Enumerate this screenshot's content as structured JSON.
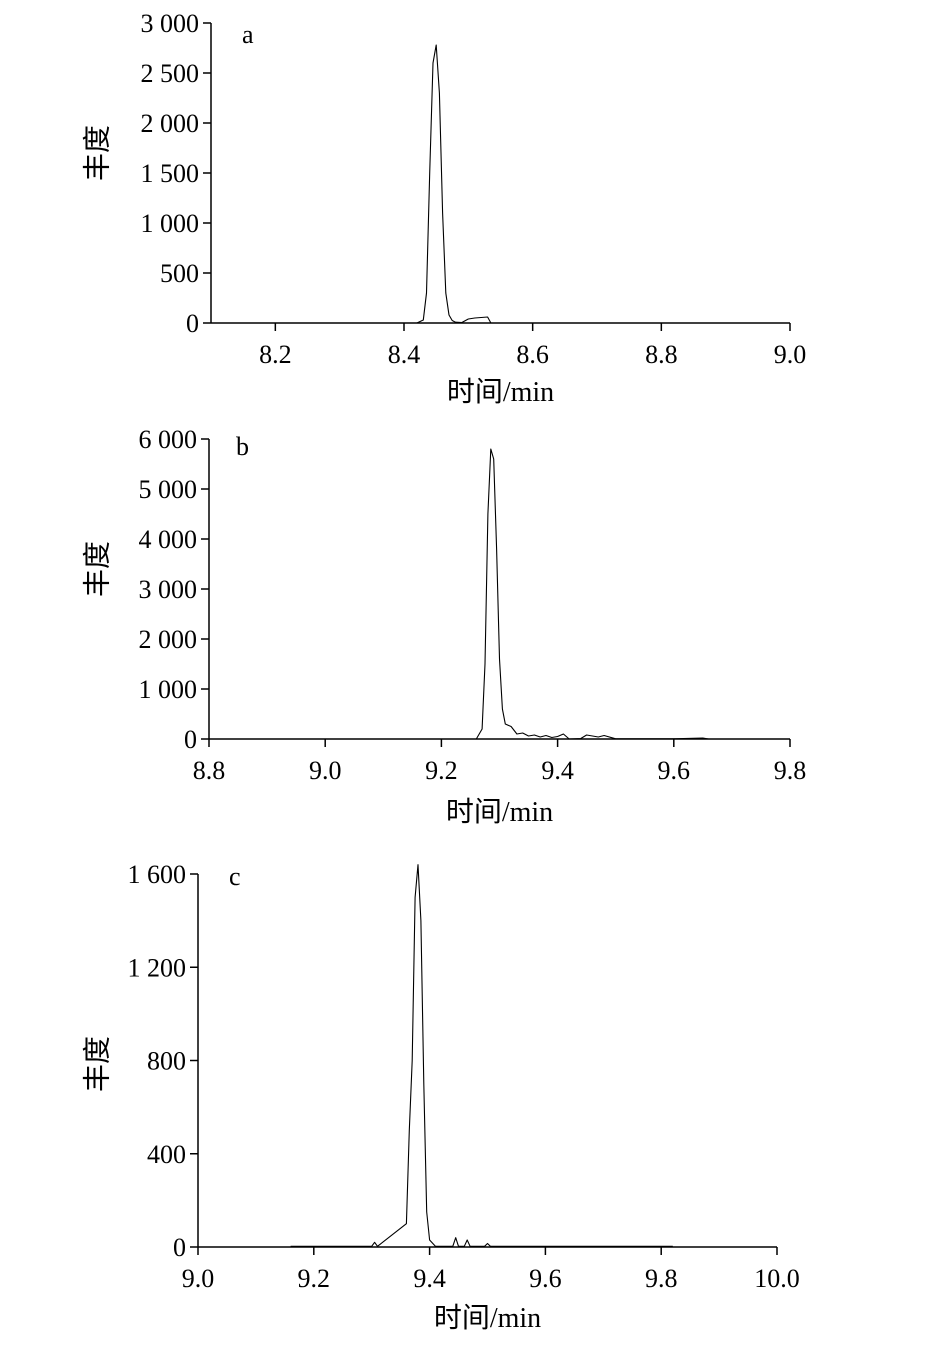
{
  "chart_data": [
    {
      "type": "line",
      "panel_label": "a",
      "xlabel": "时间/min",
      "ylabel": "丰度",
      "xlim": [
        8.1,
        9.0
      ],
      "ylim": [
        0,
        3000
      ],
      "xticks": [
        8.2,
        8.4,
        8.6,
        8.8,
        9.0
      ],
      "xtick_labels": [
        "8.2",
        "8.4",
        "8.6",
        "8.8",
        "9.0"
      ],
      "yticks": [
        0,
        500,
        1000,
        1500,
        2000,
        2500,
        3000
      ],
      "ytick_labels": [
        "0",
        "500",
        "1 000",
        "1 500",
        "2 000",
        "2 500",
        "3 000"
      ],
      "series": [
        {
          "x": [
            8.1,
            8.42,
            8.43,
            8.435,
            8.44,
            8.445,
            8.45,
            8.455,
            8.46,
            8.465,
            8.47,
            8.475,
            8.48,
            8.49,
            8.5,
            8.51,
            8.52,
            8.53,
            8.535,
            9.0
          ],
          "y": [
            0,
            0,
            30,
            300,
            1500,
            2600,
            2780,
            2300,
            1100,
            300,
            80,
            25,
            8,
            5,
            40,
            50,
            55,
            60,
            0,
            0
          ]
        }
      ]
    },
    {
      "type": "line",
      "panel_label": "b",
      "xlabel": "时间/min",
      "ylabel": "丰度",
      "xlim": [
        8.8,
        9.8
      ],
      "ylim": [
        0,
        6000
      ],
      "xticks": [
        8.8,
        9.0,
        9.2,
        9.4,
        9.6,
        9.8
      ],
      "xtick_labels": [
        "8.8",
        "9.0",
        "9.2",
        "9.4",
        "9.6",
        "9.8"
      ],
      "yticks": [
        0,
        1000,
        2000,
        3000,
        4000,
        5000,
        6000
      ],
      "ytick_labels": [
        "0",
        "1 000",
        "2 000",
        "3 000",
        "4 000",
        "5 000",
        "6 000"
      ],
      "series": [
        {
          "x": [
            8.8,
            9.26,
            9.27,
            9.275,
            9.28,
            9.285,
            9.29,
            9.295,
            9.3,
            9.305,
            9.31,
            9.32,
            9.33,
            9.34,
            9.35,
            9.36,
            9.37,
            9.38,
            9.39,
            9.4,
            9.41,
            9.42,
            9.44,
            9.45,
            9.46,
            9.47,
            9.48,
            9.5,
            9.55,
            9.6,
            9.65,
            9.66,
            9.8
          ],
          "y": [
            0,
            0,
            200,
            1500,
            4500,
            5800,
            5600,
            3800,
            1600,
            600,
            300,
            250,
            100,
            120,
            60,
            80,
            40,
            70,
            30,
            50,
            100,
            0,
            10,
            80,
            60,
            40,
            70,
            5,
            5,
            5,
            20,
            0,
            0
          ]
        }
      ]
    },
    {
      "type": "line",
      "panel_label": "c",
      "xlabel": "时间/min",
      "ylabel": "丰度",
      "xlim": [
        9.0,
        10.0
      ],
      "ylim": [
        0,
        1600
      ],
      "xticks": [
        9.0,
        9.2,
        9.4,
        9.6,
        9.8,
        10.0
      ],
      "xtick_labels": [
        "9.0",
        "9.2",
        "9.4",
        "9.6",
        "9.8",
        "10.0"
      ],
      "yticks": [
        0,
        400,
        800,
        1200,
        1600
      ],
      "ytick_labels": [
        "0",
        "400",
        "800",
        "1 200",
        "1 600"
      ],
      "series": [
        {
          "x": [
            9.16,
            9.3,
            9.305,
            9.31,
            9.36,
            9.365,
            9.37,
            9.375,
            9.38,
            9.385,
            9.39,
            9.395,
            9.4,
            9.41,
            9.44,
            9.445,
            9.45,
            9.46,
            9.465,
            9.47,
            9.495,
            9.5,
            9.505,
            9.82
          ],
          "y": [
            3,
            3,
            20,
            3,
            100,
            500,
            800,
            1500,
            1640,
            1400,
            700,
            150,
            30,
            3,
            3,
            40,
            3,
            3,
            30,
            3,
            3,
            15,
            3,
            3
          ]
        }
      ]
    }
  ]
}
